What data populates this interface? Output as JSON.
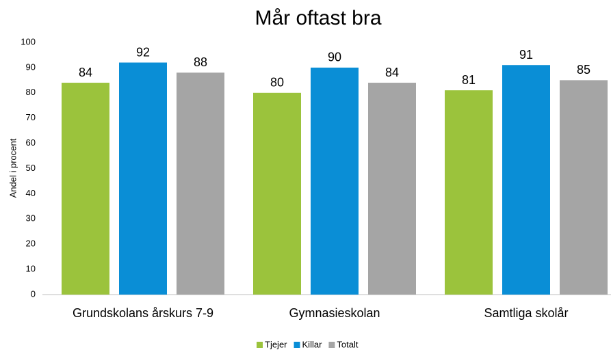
{
  "chart_data": {
    "type": "bar",
    "title": "Mår oftast bra",
    "y_label": "Andel i procent",
    "categories": [
      "Grundskolans årskurs 7-9",
      "Gymnasieskolan",
      "Samtliga skolår"
    ],
    "series": [
      {
        "name": "Tjejer",
        "color": "#9bc33c",
        "values": [
          84,
          80,
          81
        ]
      },
      {
        "name": "Killar",
        "color": "#0a8ed6",
        "values": [
          92,
          90,
          91
        ]
      },
      {
        "name": "Totalt",
        "color": "#a5a5a5",
        "values": [
          88,
          84,
          85
        ]
      }
    ],
    "ylim": [
      0,
      100
    ],
    "yticks": [
      0,
      10,
      20,
      30,
      40,
      50,
      60,
      70,
      80,
      90,
      100
    ],
    "grid": false,
    "legend": "bottom"
  }
}
